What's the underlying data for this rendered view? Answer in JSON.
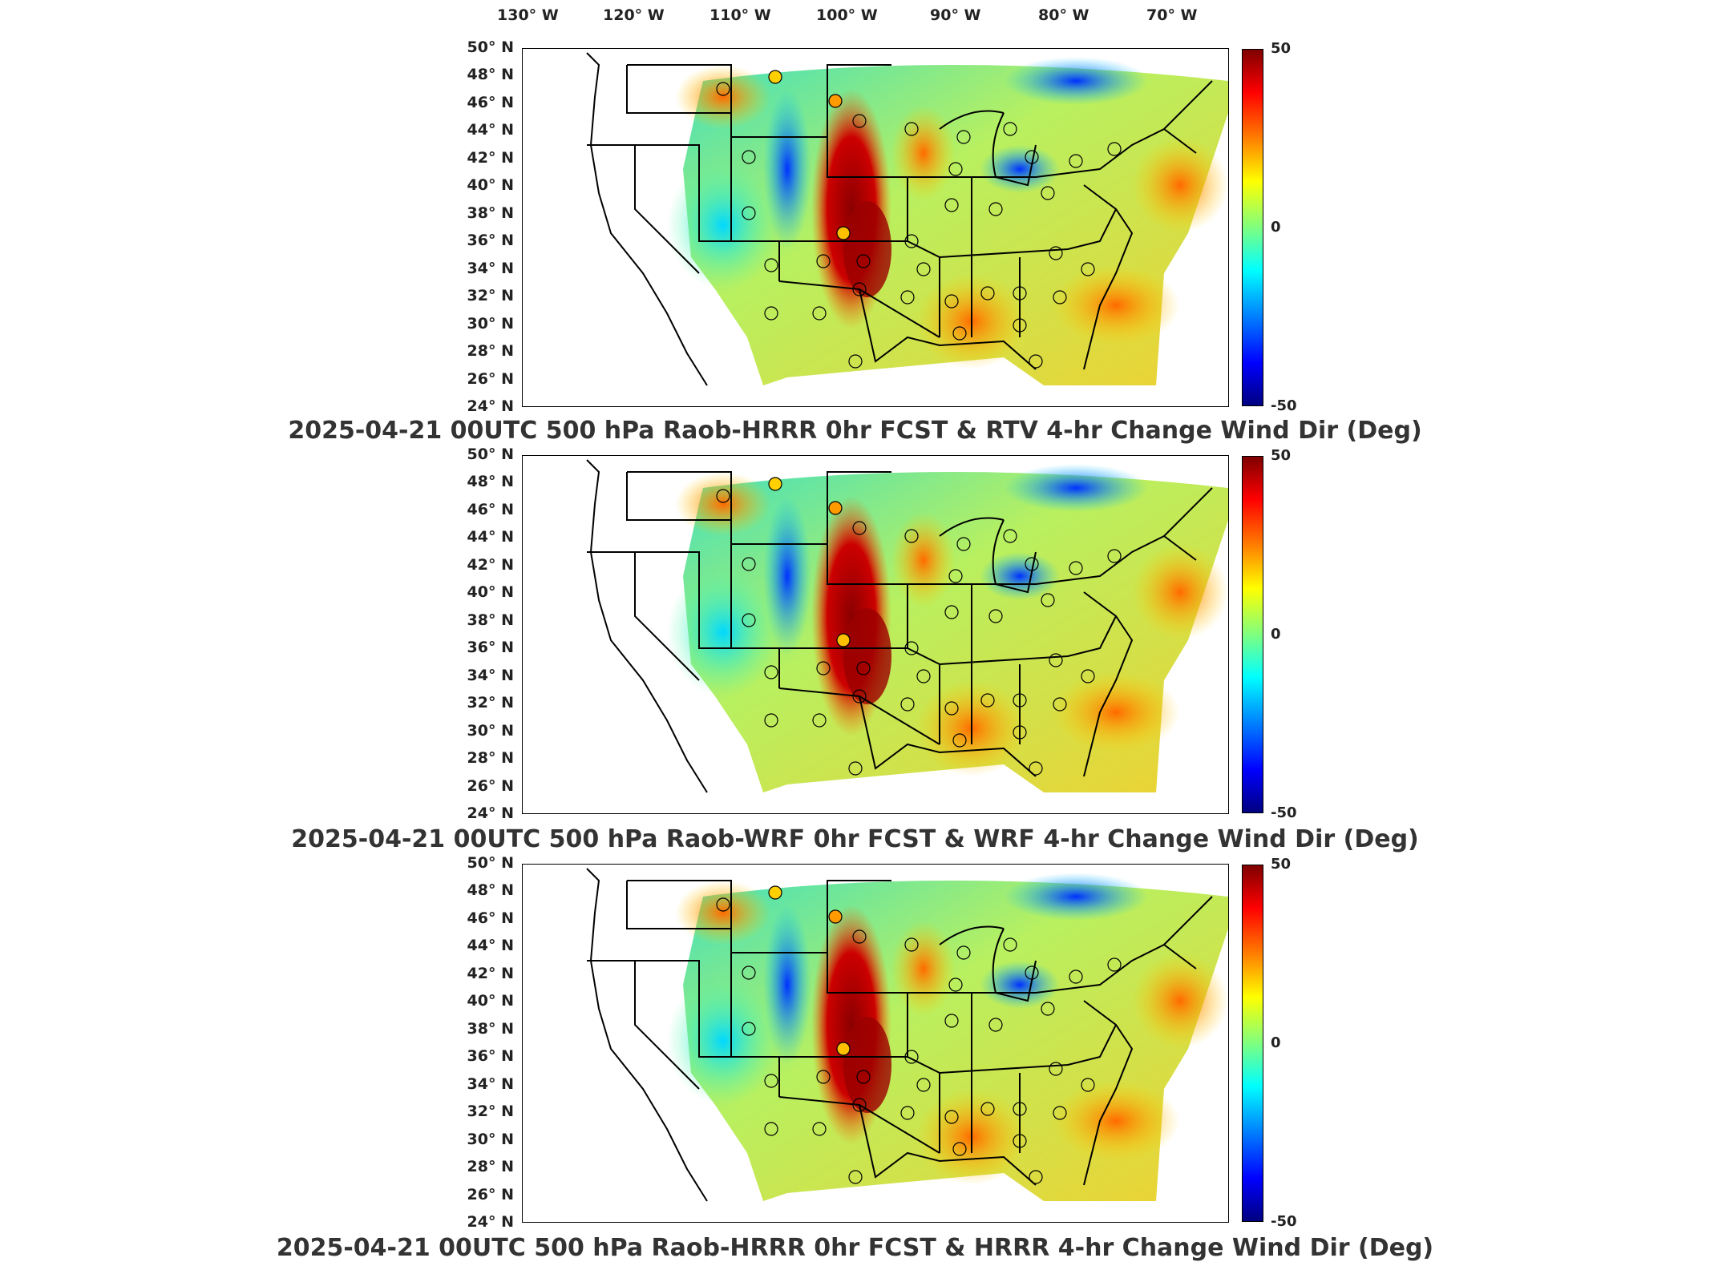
{
  "lon_labels": [
    "130° W",
    "120° W",
    "110° W",
    "100° W",
    "90° W",
    "80° W",
    "70° W"
  ],
  "lat_labels": [
    "50° N",
    "48° N",
    "46° N",
    "44° N",
    "42° N",
    "40° N",
    "38° N",
    "36° N",
    "34° N",
    "32° N",
    "30° N",
    "28° N",
    "26° N",
    "24° N"
  ],
  "colorbar": {
    "max_label": "50",
    "mid_label": "0",
    "min_label": "-50"
  },
  "colors": {
    "dark_red": "#7f0000",
    "red": "#ff0000",
    "orange": "#ff7f00",
    "yellow": "#ffff00",
    "green": "#7fff7f",
    "cyan": "#00ffff",
    "blue": "#007fff",
    "dark_blue": "#00007f"
  },
  "panels": [
    {
      "title": "2025-04-21 00UTC 500 hPa Raob-HRRR 0hr FCST & RTV 4-hr Change Wind Dir (Deg)"
    },
    {
      "title": "2025-04-21 00UTC 500 hPa Raob-WRF 0hr FCST & WRF 4-hr Change Wind Dir (Deg)"
    },
    {
      "title": "2025-04-21 00UTC 500 hPa Raob-HRRR 0hr FCST & HRRR 4-hr Change Wind Dir (Deg)"
    }
  ]
}
